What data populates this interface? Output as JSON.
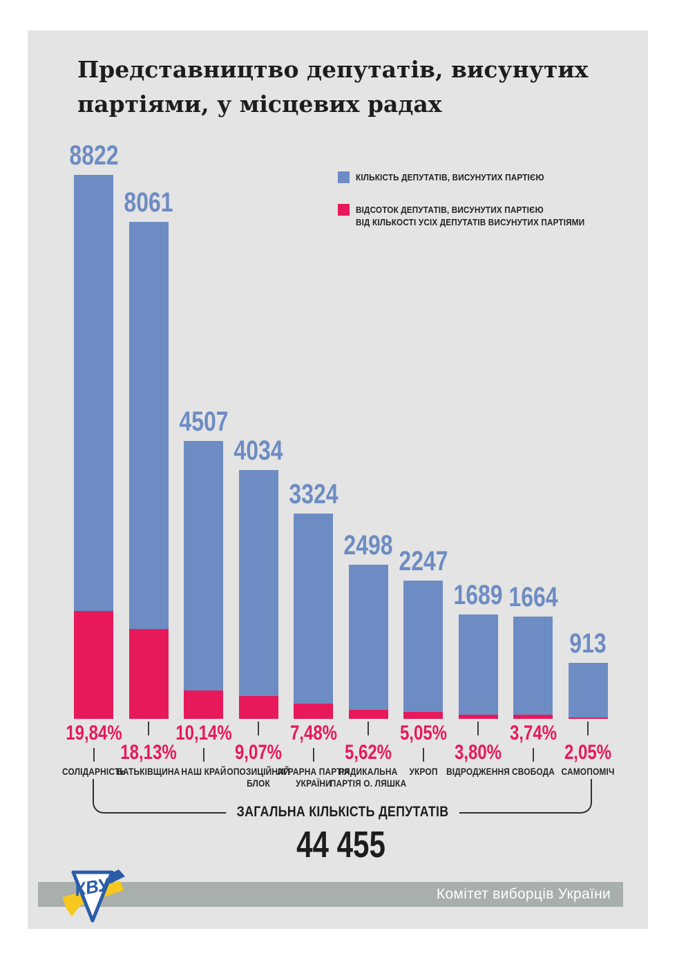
{
  "page": {
    "title": "Представництво депутатів, висунутих\nпартіями, у місцевих радах"
  },
  "colors": {
    "bar_blue": "#6d8cc3",
    "pct_red": "#e8195a",
    "card_bg": "#e4e4e4",
    "footer_band": "#a8afac",
    "text_dark": "#1d1d1b",
    "tick_dark": "#3d3d3d"
  },
  "legend": {
    "items": [
      {
        "label": "КІЛЬКІСТЬ ДЕПУТАТІВ, ВИСУНУТИХ ПАРТІЄЮ",
        "color": "#6d8cc3"
      },
      {
        "label": "ВІДСОТОК ДЕПУТАТІВ, ВИСУНУТИХ ПАРТІЄЮ\nВІД КІЛЬКОСТІ УСІХ ДЕПУТАТІВ ВИСУНУТИХ ПАРТІЯМИ",
        "color": "#e8195a"
      }
    ]
  },
  "chart_data": {
    "type": "bar",
    "title": "Представництво депутатів, висунутих партіями, у місцевих радах",
    "categories": [
      "СОЛІДАРНІСТЬ",
      "БАТЬКІВЩИНА",
      "НАШ КРАЙ",
      "ОПОЗИЦІЙНИЙ БЛОК",
      "АГРАРНА ПАРТІЯ УКРАЇНИ",
      "РАДИКАЛЬНА ПАРТІЯ О. ЛЯШКА",
      "УКРОП",
      "ВІДРОДЖЕННЯ",
      "СВОБОДА",
      "САМОПОМІЧ"
    ],
    "category_lines": [
      [
        "СОЛІДАРНІСТЬ"
      ],
      [
        "БАТЬКІВЩИНА"
      ],
      [
        "НАШ КРАЙ"
      ],
      [
        "ОПОЗИЦІЙНИЙ",
        "БЛОК"
      ],
      [
        "АГРАРНА ПАРТІЯ",
        "УКРАЇНИ"
      ],
      [
        "РАДИКАЛЬНА",
        "ПАРТІЯ О. ЛЯШКА"
      ],
      [
        "УКРОП"
      ],
      [
        "ВІДРОДЖЕННЯ"
      ],
      [
        "СВОБОДА"
      ],
      [
        "САМОПОМІЧ"
      ]
    ],
    "series": [
      {
        "name": "КІЛЬКІСТЬ ДЕПУТАТІВ, ВИСУНУТИХ ПАРТІЄЮ",
        "values": [
          8822,
          8061,
          4507,
          4034,
          3324,
          2498,
          2247,
          1689,
          1664,
          913
        ]
      },
      {
        "name": "ВІДСОТОК ДЕПУТАТІВ, ВИСУНУТИХ ПАРТІЄЮ ВІД КІЛЬКОСТІ УСІХ ДЕПУТАТІВ ВИСУНУТИХ ПАРТІЯМИ",
        "unit": "%",
        "values": [
          19.84,
          18.13,
          10.14,
          9.07,
          7.48,
          5.62,
          5.05,
          3.8,
          3.74,
          2.05
        ]
      }
    ],
    "value_labels": [
      "8822",
      "8061",
      "4507",
      "4034",
      "3324",
      "2498",
      "2247",
      "1689",
      "1664",
      "913"
    ],
    "pct_labels": [
      "19,84%",
      "18,13%",
      "10,14%",
      "9,07%",
      "7,48%",
      "5,62%",
      "5,05%",
      "3,80%",
      "3,74%",
      "2,05%"
    ],
    "legend_position": "top-right",
    "grid": false,
    "ylim": [
      0,
      8822
    ]
  },
  "summary": {
    "bracket_label": "ЗАГАЛЬНА КІЛЬКІСТЬ ДЕПУТАТІВ",
    "total": "44 455"
  },
  "footer": {
    "org": "Комітет виборців України",
    "logo": "КВУ"
  }
}
